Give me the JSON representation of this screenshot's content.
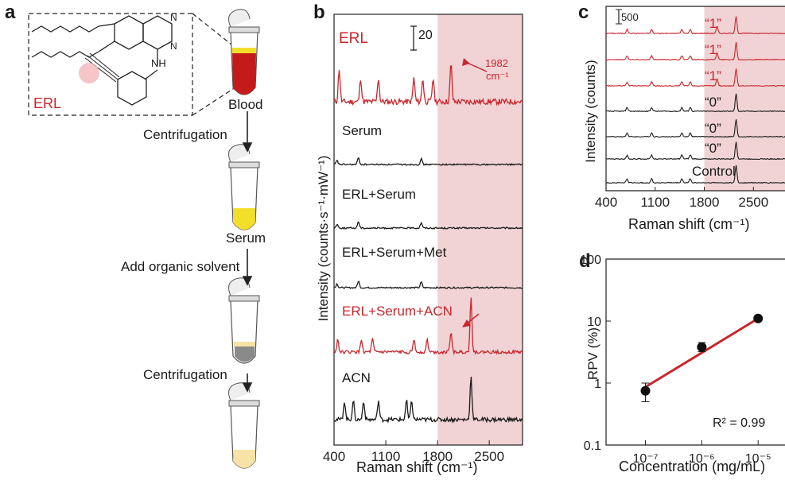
{
  "colors": {
    "red": "#c8262c",
    "black": "#1a1a1a",
    "shade": "#f1d3d5",
    "tube_blood": "#c41a1a",
    "tube_yellow": "#f2df2a",
    "tube_pale": "#f7e3a6"
  },
  "panel_a": {
    "letter": "a",
    "molecule_label": "ERL",
    "nh_label": "NH",
    "n_label": "N",
    "steps": {
      "blood": "Blood",
      "centrifugation1": "Centrifugation",
      "serum": "Serum",
      "add_solvent": "Add organic solvent",
      "centrifugation2": "Centrifugation"
    }
  },
  "panel_b": {
    "letter": "b",
    "scale_bar_label": "20",
    "ylabel": "Intensity (counts·s⁻¹·mW⁻¹)",
    "xlabel": "Raman shift (cm⁻¹)",
    "xticks": [
      "400",
      "1100",
      "1800",
      "2500"
    ],
    "peak_annotation_1": "1982",
    "peak_annotation_2": "cm⁻¹",
    "traces": [
      {
        "label": "ERL",
        "color": "red"
      },
      {
        "label": "Serum",
        "color": "black"
      },
      {
        "label": "ERL+Serum",
        "color": "black"
      },
      {
        "label": "ERL+Serum+Met",
        "color": "black"
      },
      {
        "label": "ERL+Serum+ACN",
        "color": "red"
      },
      {
        "label": "ACN",
        "color": "black"
      }
    ]
  },
  "panel_c": {
    "letter": "c",
    "scale_bar_label": "500",
    "ylabel": "Intensity (counts)",
    "xlabel": "Raman shift (cm⁻¹)",
    "xticks": [
      "400",
      "1100",
      "1800",
      "2500"
    ],
    "traces": [
      {
        "label": "“1”",
        "color": "red"
      },
      {
        "label": "“1”",
        "color": "red"
      },
      {
        "label": "“1”",
        "color": "red"
      },
      {
        "label": "“0”",
        "color": "black"
      },
      {
        "label": "“0”",
        "color": "black"
      },
      {
        "label": "“0”",
        "color": "black"
      },
      {
        "label": "Control",
        "color": "black"
      }
    ]
  },
  "chart_data": [
    {
      "type": "line",
      "panel": "b",
      "xlabel": "Raman shift (cm⁻¹)",
      "ylabel": "Intensity (counts·s⁻¹·mW⁻¹)",
      "xlim": [
        400,
        2950
      ],
      "shaded_region": [
        1800,
        2950
      ],
      "series": [
        {
          "name": "ERL",
          "peaks_cm1": [
            470,
            760,
            1000,
            1480,
            1600,
            1740,
            1982
          ]
        },
        {
          "name": "Serum",
          "peaks_cm1": [
            440,
            730,
            1580
          ]
        },
        {
          "name": "ERL+Serum",
          "peaks_cm1": [
            440,
            730,
            1580
          ]
        },
        {
          "name": "ERL+Serum+Met",
          "peaks_cm1": [
            440,
            730,
            1580
          ]
        },
        {
          "name": "ERL+Serum+ACN",
          "peaks_cm1": [
            450,
            770,
            920,
            1480,
            1660,
            1982,
            2253
          ]
        },
        {
          "name": "ACN",
          "peaks_cm1": [
            540,
            660,
            800,
            1000,
            1380,
            1450,
            2253
          ]
        }
      ]
    },
    {
      "type": "line",
      "panel": "c",
      "xlabel": "Raman shift (cm⁻¹)",
      "ylabel": "Intensity (counts)",
      "xlim": [
        400,
        2950
      ],
      "shaded_region": [
        1800,
        2950
      ],
      "series": [
        {
          "name": "“1”",
          "peaks_cm1": [
            1982,
            2253
          ]
        },
        {
          "name": "“1”",
          "peaks_cm1": [
            1982,
            2253
          ]
        },
        {
          "name": "“1”",
          "peaks_cm1": [
            1982,
            2253
          ]
        },
        {
          "name": "“0”",
          "peaks_cm1": [
            2253
          ]
        },
        {
          "name": "“0”",
          "peaks_cm1": [
            2253
          ]
        },
        {
          "name": "“0”",
          "peaks_cm1": [
            2253
          ]
        },
        {
          "name": "Control",
          "peaks_cm1": [
            2253
          ]
        }
      ]
    },
    {
      "type": "scatter",
      "panel": "d",
      "xlabel": "Concentration (mg/mL)",
      "ylabel": "RPV (%)",
      "xscale": "log",
      "yscale": "log",
      "xlim": [
        2e-08,
        3e-05
      ],
      "ylim": [
        0.1,
        100
      ],
      "xticks": [
        "10⁻⁷",
        "10⁻⁶",
        "10⁻⁵"
      ],
      "yticks": [
        "100",
        "10",
        "1",
        "0.1"
      ],
      "points": [
        {
          "x": 1e-07,
          "y": 0.75,
          "err_low": 0.5,
          "err_high": 1.0
        },
        {
          "x": 1e-06,
          "y": 3.8,
          "err_low": 3.2,
          "err_high": 4.5
        },
        {
          "x": 1e-05,
          "y": 11.0,
          "err_low": 10.3,
          "err_high": 11.6
        }
      ],
      "fit": {
        "r2_label": "R² = 0.99"
      }
    }
  ]
}
